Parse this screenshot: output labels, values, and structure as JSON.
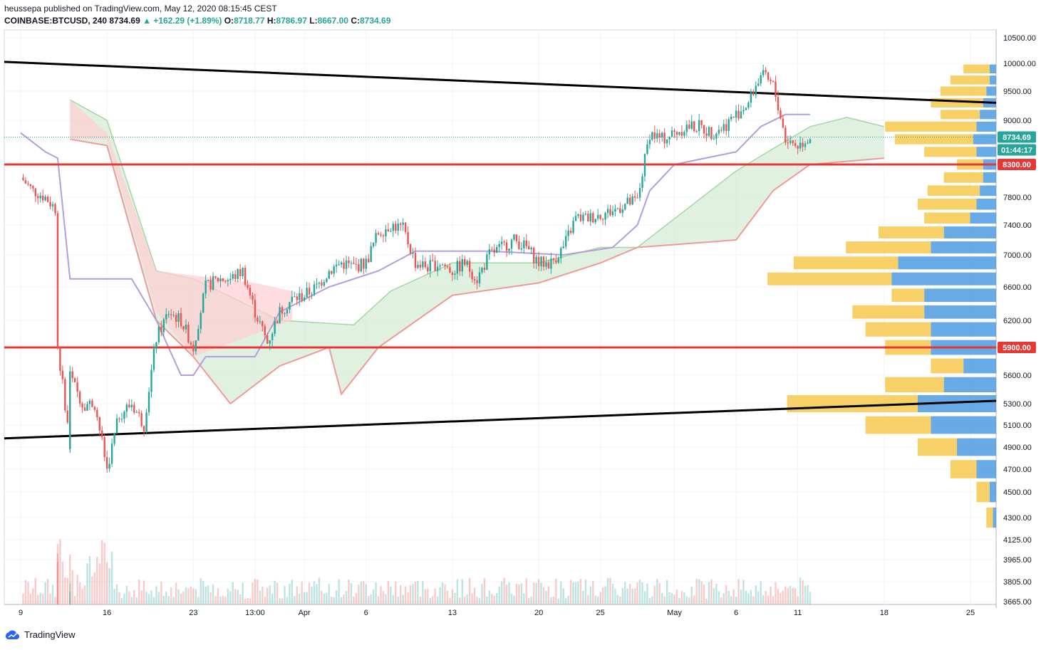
{
  "header": {
    "published": "heussepa published on TradingView.com, May 12, 2020 08:15:45 CEST",
    "symbol": "COINBASE:BTCUSD, 240",
    "last": "8734.69",
    "change": "+162.29 (+1.89%)",
    "o_label": "O:",
    "o_value": "8718.77",
    "h_label": "H:",
    "h_value": "8786.97",
    "l_label": "L:",
    "l_value": "8667.00",
    "c_label": "C:",
    "c_value": "8734.69"
  },
  "footer": {
    "brand": "TradingView"
  },
  "colors": {
    "up": "#26a69a",
    "down": "#ef5350",
    "hline": "#e53935",
    "trend": "#000000",
    "cloud_green": "#c8e6c9",
    "cloud_red": "#ffcdd2",
    "kijun": "#b39ddb",
    "vp_up": "#4c9be0",
    "vp_down": "#f6c94e",
    "current_tag": "#26a69a"
  },
  "chart_data": {
    "type": "candlestick",
    "symbol": "COINBASE:BTCUSD",
    "interval": "240",
    "y_ticks": [
      "10500.00",
      "10000.00",
      "9500.00",
      "9000.00",
      "7800.00",
      "7400.00",
      "7000.00",
      "6600.00",
      "6200.00",
      "5600.00",
      "5300.00",
      "5100.00",
      "4900.00",
      "4700.00",
      "4500.00",
      "4300.00",
      "4125.00",
      "3965.00",
      "3805.00",
      "3665.00"
    ],
    "y_tick_values": [
      10500,
      10000,
      9500,
      9000,
      7800,
      7400,
      7000,
      6600,
      6200,
      5600,
      5300,
      5100,
      4900,
      4700,
      4500,
      4300,
      4125,
      3965,
      3805,
      3665
    ],
    "x_ticks": [
      "9",
      "16",
      "23",
      "13:00",
      "Apr",
      "6",
      "13",
      "20",
      "25",
      "May",
      "6",
      "11",
      "18",
      "25"
    ],
    "price_tags": {
      "current_price": "8734.69",
      "countdown": "01:44:17",
      "resistance": "8300.00",
      "support": "5900.00"
    },
    "horizontal_lines": [
      8300,
      5900
    ],
    "trendlines": [
      {
        "name": "upper",
        "from": [
          "Mar 9",
          9950
        ],
        "to": [
          "May 25",
          9300
        ]
      },
      {
        "name": "lower",
        "from": [
          "Mar 9",
          4940
        ],
        "to": [
          "May 25",
          5330
        ]
      }
    ],
    "price_path": [
      [
        "Mar 9",
        8100
      ],
      [
        "Mar 10",
        7900
      ],
      [
        "Mar 11",
        7800
      ],
      [
        "Mar 12",
        7600
      ],
      [
        "Mar 12",
        5900
      ],
      [
        "Mar 13",
        4900
      ],
      [
        "Mar 13",
        5600
      ],
      [
        "Mar 14",
        5300
      ],
      [
        "Mar 15",
        5300
      ],
      [
        "Mar 16",
        4700
      ],
      [
        "Mar 17",
        5200
      ],
      [
        "Mar 18",
        5300
      ],
      [
        "Mar 19",
        5100
      ],
      [
        "Mar 20",
        6000
      ],
      [
        "Mar 21",
        6300
      ],
      [
        "Mar 22",
        6200
      ],
      [
        "Mar 23",
        5900
      ],
      [
        "Mar 24",
        6600
      ],
      [
        "Mar 25",
        6700
      ],
      [
        "Mar 26",
        6700
      ],
      [
        "Mar 27",
        6800
      ],
      [
        "Mar 28",
        6300
      ],
      [
        "Mar 29",
        5950
      ],
      [
        "Mar 30",
        6300
      ],
      [
        "Mar 31",
        6450
      ],
      [
        "Apr 1",
        6500
      ],
      [
        "Apr 2",
        6600
      ],
      [
        "Apr 3",
        6800
      ],
      [
        "Apr 4",
        6900
      ],
      [
        "Apr 5",
        6850
      ],
      [
        "Apr 6",
        6900
      ],
      [
        "Apr 7",
        7300
      ],
      [
        "Apr 8",
        7400
      ],
      [
        "Apr 9",
        7350
      ],
      [
        "Apr 10",
        6900
      ],
      [
        "Apr 11",
        6850
      ],
      [
        "Apr 12",
        6900
      ],
      [
        "Apr 13",
        6800
      ],
      [
        "Apr 14",
        6900
      ],
      [
        "Apr 15",
        6700
      ],
      [
        "Apr 16",
        7000
      ],
      [
        "Apr 17",
        7100
      ],
      [
        "Apr 18",
        7200
      ],
      [
        "Apr 19",
        7100
      ],
      [
        "Apr 20",
        6900
      ],
      [
        "Apr 21",
        6900
      ],
      [
        "Apr 22",
        7100
      ],
      [
        "Apr 23",
        7500
      ],
      [
        "Apr 24",
        7500
      ],
      [
        "Apr 25",
        7550
      ],
      [
        "Apr 26",
        7600
      ],
      [
        "Apr 27",
        7700
      ],
      [
        "Apr 28",
        7750
      ],
      [
        "Apr 29",
        8800
      ],
      [
        "Apr 30",
        8700
      ],
      [
        "May 1",
        8800
      ],
      [
        "May 2",
        8900
      ],
      [
        "May 3",
        8900
      ],
      [
        "May 4",
        8800
      ],
      [
        "May 5",
        8900
      ],
      [
        "May 6",
        9100
      ],
      [
        "May 7",
        9300
      ],
      [
        "May 8",
        9800
      ],
      [
        "May 9",
        9600
      ],
      [
        "May 10",
        8700
      ],
      [
        "May 11",
        8600
      ],
      [
        "May 12",
        8734.69
      ]
    ],
    "volume_profile": [
      [
        9900,
        0.1,
        0.4
      ],
      [
        9700,
        0.1,
        0.6
      ],
      [
        9500,
        0.15,
        0.7
      ],
      [
        9300,
        0.2,
        0.8
      ],
      [
        9100,
        0.25,
        0.6
      ],
      [
        8900,
        0.3,
        1.4
      ],
      [
        8700,
        0.35,
        1.2
      ],
      [
        8500,
        0.3,
        0.8
      ],
      [
        8300,
        0.2,
        0.4
      ],
      [
        8100,
        0.2,
        0.6
      ],
      [
        7900,
        0.25,
        0.8
      ],
      [
        7700,
        0.3,
        0.9
      ],
      [
        7500,
        0.4,
        0.7
      ],
      [
        7300,
        0.8,
        1.0
      ],
      [
        7100,
        1.0,
        1.3
      ],
      [
        6900,
        1.5,
        1.6
      ],
      [
        6700,
        1.6,
        1.9
      ],
      [
        6500,
        1.1,
        0.5
      ],
      [
        6300,
        1.1,
        1.1
      ],
      [
        6100,
        1.0,
        1.0
      ],
      [
        5900,
        1.0,
        0.7
      ],
      [
        5700,
        0.5,
        0.5
      ],
      [
        5500,
        0.8,
        0.9
      ],
      [
        5300,
        1.2,
        2.0
      ],
      [
        5100,
        1.0,
        1.0
      ],
      [
        4900,
        0.6,
        0.6
      ],
      [
        4700,
        0.3,
        0.4
      ],
      [
        4500,
        0.1,
        0.2
      ],
      [
        4300,
        0.05,
        0.1
      ]
    ]
  }
}
